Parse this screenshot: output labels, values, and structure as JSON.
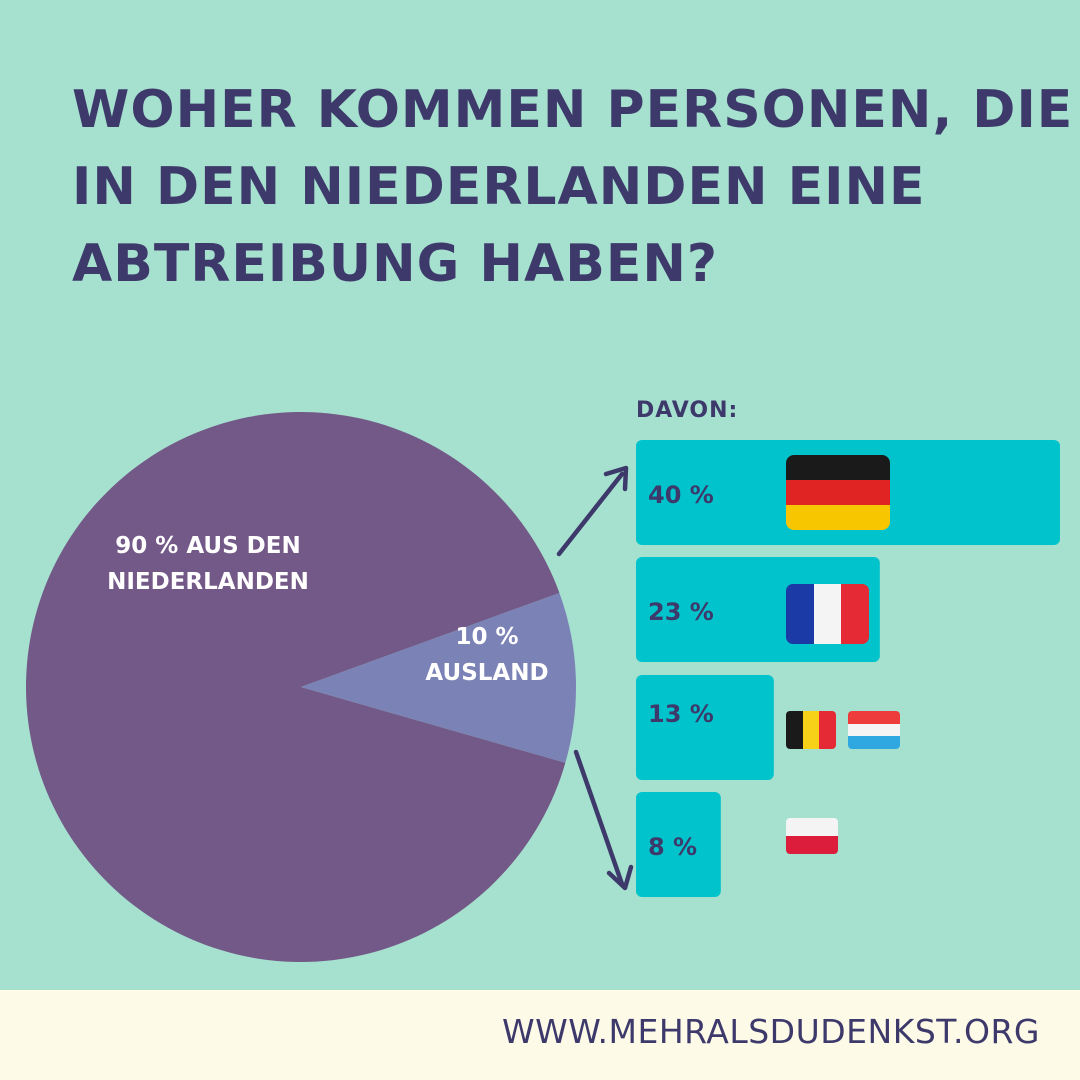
{
  "title_lines": [
    "WOHER KOMMEN PERSONEN, DIE",
    "IN DEN NIEDERLANDEN EINE",
    "ABTREIBUNG HABEN?"
  ],
  "footer": {
    "url": "WWW.MEHRALSDUDENKST.ORG"
  },
  "colors": {
    "background": "#a6e0cf",
    "title": "#3d3a6b",
    "pie_main": "#735987",
    "pie_ausland": "#7b82b6",
    "bar": "#00c3cb",
    "arrow": "#3d3a6b",
    "footer_bg": "#fdfae8"
  },
  "chart_data": [
    {
      "type": "pie",
      "slices": [
        {
          "value": 90,
          "label_lines": [
            "90 % AUS DEN",
            "NIEDERLANDEN"
          ]
        },
        {
          "value": 10,
          "label_lines": [
            "10 %",
            "AUSLAND"
          ]
        }
      ]
    },
    {
      "type": "bar",
      "orientation": "horizontal",
      "heading": "DAVON:",
      "categories": [
        "40 %",
        "23 %",
        "13 %",
        "8 %"
      ],
      "values": [
        40,
        23,
        13,
        8
      ],
      "flags": [
        [
          "germany-flag"
        ],
        [
          "france-flag"
        ],
        [
          "belgium-flag",
          "luxembourg-flag"
        ],
        [
          "poland-flag"
        ]
      ]
    }
  ]
}
